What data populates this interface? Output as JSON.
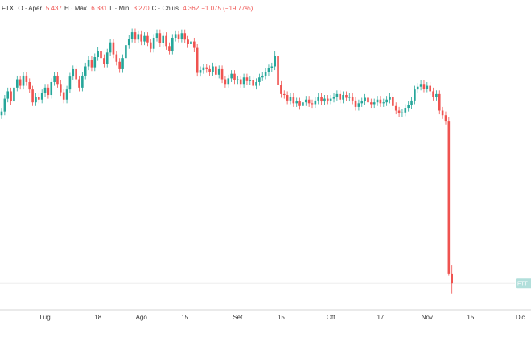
{
  "chart_data": {
    "type": "candlestick",
    "header": {
      "symbol": "FTX",
      "fields": [
        {
          "label": "O · Aper.",
          "value": "5.437"
        },
        {
          "label": "H · Max.",
          "value": "6.381"
        },
        {
          "label": "L · Min.",
          "value": "3.270"
        },
        {
          "label": "C · Chius.",
          "value": "4.362"
        }
      ],
      "change": "−1.075 (−19.77%)"
    },
    "price_label": "FTT",
    "up_color": "#26a69a",
    "down_color": "#ef5350",
    "ylim": [
      1.5,
      35.1
    ],
    "categories": [
      null,
      null,
      null,
      null,
      null,
      null,
      null,
      null,
      null,
      null,
      null,
      null,
      null,
      null,
      "Lug",
      null,
      null,
      null,
      null,
      null,
      null,
      null,
      null,
      null,
      null,
      null,
      null,
      null,
      null,
      null,
      null,
      "18",
      null,
      null,
      null,
      null,
      null,
      null,
      null,
      null,
      null,
      null,
      null,
      null,
      null,
      "Ago",
      null,
      null,
      null,
      null,
      null,
      null,
      null,
      null,
      null,
      null,
      null,
      null,
      null,
      "15",
      null,
      null,
      null,
      null,
      null,
      null,
      null,
      null,
      null,
      null,
      null,
      null,
      null,
      null,
      null,
      null,
      "Set",
      null,
      null,
      null,
      null,
      null,
      null,
      null,
      null,
      null,
      null,
      null,
      null,
      null,
      "15",
      null,
      null,
      null,
      null,
      null,
      null,
      null,
      null,
      null,
      null,
      null,
      null,
      null,
      null,
      null,
      "Ott",
      null,
      null,
      null,
      null,
      null,
      null,
      null,
      null,
      null,
      null,
      null,
      null,
      null,
      null,
      null,
      "17",
      null,
      null,
      null,
      null,
      null,
      null,
      null,
      null,
      null,
      null,
      null,
      null,
      null,
      null,
      "Nov",
      null,
      null,
      null,
      null,
      null,
      null,
      null,
      null,
      null,
      null,
      null,
      null,
      null,
      "15",
      null,
      null,
      null,
      null,
      null,
      null,
      null,
      null,
      null,
      null,
      null,
      null,
      null,
      null,
      null,
      "Dic"
    ],
    "open": [
      22.6,
      23.0,
      24.4,
      25.2,
      24.1,
      25.6,
      26.5,
      25.8,
      26.9,
      26.2,
      25.4,
      24.0,
      24.6,
      24.3,
      25.0,
      25.6,
      24.8,
      26.2,
      26.9,
      26.0,
      25.1,
      24.3,
      25.4,
      26.8,
      27.6,
      26.5,
      25.6,
      26.9,
      27.9,
      28.6,
      27.8,
      28.9,
      29.6,
      28.8,
      28.2,
      29.4,
      30.5,
      29.2,
      28.4,
      27.6,
      28.8,
      30.2,
      30.9,
      31.6,
      30.8,
      31.4,
      30.6,
      31.2,
      30.5,
      29.8,
      31.0,
      31.5,
      30.4,
      31.2,
      30.1,
      29.6,
      31.0,
      31.4,
      30.9,
      31.5,
      30.8,
      30.3,
      30.6,
      29.9,
      27.2,
      27.5,
      27.8,
      27.6,
      27.3,
      27.9,
      27.0,
      27.6,
      26.5,
      26.0,
      26.6,
      27.1,
      26.4,
      26.5,
      26.0,
      26.7,
      26.3,
      26.4,
      25.8,
      26.2,
      26.7,
      26.9,
      27.3,
      27.7,
      27.9,
      29.0,
      25.9,
      24.9,
      24.8,
      24.2,
      24.6,
      23.9,
      24.1,
      23.6,
      24.0,
      24.3,
      23.9,
      23.8,
      24.2,
      24.6,
      24.1,
      24.4,
      24.2,
      24.4,
      24.6,
      24.9,
      24.3,
      24.8,
      24.5,
      24.6,
      24.2,
      23.5,
      23.9,
      24.1,
      24.5,
      24.0,
      23.8,
      24.0,
      24.3,
      23.9,
      24.0,
      24.3,
      24.6,
      23.6,
      23.1,
      22.8,
      22.9,
      23.4,
      23.7,
      24.2,
      25.4,
      25.7,
      26.0,
      25.5,
      25.8,
      25.2,
      24.6,
      24.9,
      23.1,
      22.6,
      22.0,
      5.437,
      null,
      null,
      null,
      null,
      null,
      null,
      null,
      null,
      null,
      null,
      null,
      null,
      null,
      null,
      null,
      null,
      null,
      null,
      null,
      null,
      null,
      null
    ],
    "high": [
      23.4,
      24.8,
      25.6,
      25.6,
      26.0,
      26.9,
      26.9,
      27.3,
      27.3,
      26.6,
      25.8,
      25.0,
      25.0,
      25.4,
      26.0,
      26.0,
      26.6,
      27.3,
      27.3,
      26.4,
      25.5,
      25.8,
      27.2,
      28.0,
      28.0,
      26.9,
      27.3,
      28.3,
      29.0,
      29.0,
      29.3,
      30.0,
      30.0,
      29.2,
      29.8,
      30.9,
      30.9,
      29.6,
      28.8,
      29.2,
      30.6,
      31.3,
      32.0,
      32.0,
      31.8,
      31.8,
      31.6,
      31.6,
      30.9,
      31.4,
      31.9,
      31.9,
      31.6,
      31.6,
      30.5,
      31.4,
      31.8,
      31.8,
      31.9,
      31.9,
      31.2,
      31.0,
      31.0,
      30.3,
      27.9,
      28.2,
      28.2,
      28.0,
      28.3,
      28.3,
      28.0,
      28.0,
      26.9,
      27.0,
      27.5,
      27.5,
      26.9,
      26.9,
      27.1,
      27.1,
      26.8,
      26.8,
      26.6,
      27.1,
      27.3,
      27.7,
      28.1,
      28.3,
      29.6,
      29.4,
      26.3,
      25.3,
      25.2,
      25.0,
      25.0,
      24.5,
      24.5,
      24.4,
      24.7,
      24.7,
      24.3,
      24.6,
      25.0,
      25.0,
      24.8,
      24.8,
      24.8,
      25.0,
      25.3,
      25.3,
      25.2,
      25.2,
      25.0,
      25.0,
      24.6,
      24.3,
      24.5,
      24.9,
      24.9,
      24.4,
      24.4,
      24.7,
      24.7,
      24.4,
      24.7,
      25.0,
      25.0,
      24.0,
      23.5,
      23.3,
      23.8,
      24.1,
      24.6,
      25.8,
      26.1,
      26.4,
      26.4,
      26.2,
      26.2,
      25.6,
      25.3,
      25.3,
      23.5,
      23.0,
      22.4,
      6.381,
      null,
      null,
      null,
      null,
      null,
      null,
      null,
      null,
      null,
      null,
      null,
      null,
      null,
      null,
      null,
      null,
      null,
      null,
      null,
      null,
      null,
      null
    ],
    "low": [
      22.2,
      22.6,
      24.0,
      23.7,
      23.7,
      25.2,
      25.4,
      25.4,
      25.8,
      25.0,
      23.6,
      23.6,
      23.9,
      23.9,
      24.6,
      24.4,
      24.4,
      25.8,
      25.6,
      24.7,
      23.9,
      23.9,
      25.0,
      26.4,
      26.1,
      25.2,
      25.2,
      26.5,
      27.5,
      27.4,
      27.4,
      28.5,
      28.4,
      27.8,
      27.8,
      29.0,
      28.8,
      28.0,
      27.2,
      27.2,
      28.4,
      29.8,
      30.5,
      30.4,
      30.4,
      30.2,
      30.2,
      30.1,
      29.4,
      29.4,
      30.6,
      30.0,
      30.0,
      29.7,
      29.2,
      29.2,
      30.6,
      30.5,
      30.5,
      30.4,
      29.9,
      29.9,
      29.5,
      26.8,
      26.8,
      27.1,
      27.2,
      26.9,
      26.9,
      26.6,
      26.6,
      26.1,
      25.6,
      25.6,
      26.2,
      26.0,
      26.0,
      25.6,
      25.6,
      25.9,
      25.9,
      25.4,
      25.4,
      25.8,
      26.3,
      26.5,
      26.9,
      27.3,
      27.5,
      25.5,
      24.5,
      24.4,
      23.8,
      23.8,
      23.5,
      23.5,
      23.2,
      23.2,
      23.6,
      23.5,
      23.4,
      23.4,
      23.8,
      23.7,
      23.7,
      23.8,
      23.8,
      24.0,
      24.2,
      23.9,
      23.9,
      24.1,
      24.1,
      23.8,
      23.1,
      23.1,
      23.5,
      23.7,
      23.6,
      23.4,
      23.4,
      23.6,
      23.5,
      23.5,
      23.6,
      23.9,
      23.2,
      22.7,
      22.4,
      22.4,
      22.5,
      23.0,
      23.3,
      23.8,
      25.0,
      25.3,
      25.1,
      25.1,
      24.8,
      24.2,
      24.2,
      22.7,
      22.2,
      21.6,
      5.2,
      3.27,
      null,
      null,
      null,
      null,
      null,
      null,
      null,
      null,
      null,
      null,
      null,
      null,
      null,
      null,
      null,
      null,
      null,
      null,
      null,
      null,
      null,
      null
    ],
    "close": [
      23.0,
      24.4,
      25.2,
      24.1,
      25.6,
      26.5,
      25.8,
      26.9,
      26.2,
      25.4,
      24.0,
      24.6,
      24.3,
      25.0,
      25.6,
      24.8,
      26.2,
      26.9,
      26.0,
      25.1,
      24.3,
      25.4,
      26.8,
      27.6,
      26.5,
      25.6,
      26.9,
      27.9,
      28.6,
      27.8,
      28.9,
      29.6,
      28.8,
      28.2,
      29.4,
      30.5,
      29.2,
      28.4,
      27.6,
      28.8,
      30.2,
      30.9,
      31.6,
      30.8,
      31.4,
      30.6,
      31.2,
      30.5,
      29.8,
      31.0,
      31.5,
      30.4,
      31.2,
      30.1,
      29.6,
      31.0,
      31.4,
      30.9,
      31.5,
      30.8,
      30.3,
      30.6,
      29.9,
      27.2,
      27.5,
      27.8,
      27.6,
      27.3,
      27.9,
      27.0,
      27.6,
      26.5,
      26.0,
      26.6,
      27.1,
      26.4,
      26.5,
      26.0,
      26.7,
      26.3,
      26.4,
      25.8,
      26.2,
      26.7,
      26.9,
      27.3,
      27.7,
      27.9,
      29.0,
      25.9,
      24.9,
      24.8,
      24.2,
      24.6,
      23.9,
      24.1,
      23.6,
      24.0,
      24.3,
      23.9,
      23.8,
      24.2,
      24.6,
      24.1,
      24.4,
      24.2,
      24.4,
      24.6,
      24.9,
      24.3,
      24.8,
      24.5,
      24.6,
      24.2,
      23.5,
      23.9,
      24.1,
      24.5,
      24.0,
      23.8,
      24.0,
      24.3,
      23.9,
      24.0,
      24.3,
      24.6,
      23.6,
      23.1,
      22.8,
      22.9,
      23.4,
      23.7,
      24.2,
      25.4,
      25.7,
      26.0,
      25.5,
      25.8,
      25.2,
      24.6,
      24.9,
      23.1,
      22.6,
      22.0,
      5.437,
      4.362,
      null,
      null,
      null,
      null,
      null,
      null,
      null,
      null,
      null,
      null,
      null,
      null,
      null,
      null,
      null,
      null,
      null,
      null,
      null,
      null,
      null,
      null
    ]
  }
}
